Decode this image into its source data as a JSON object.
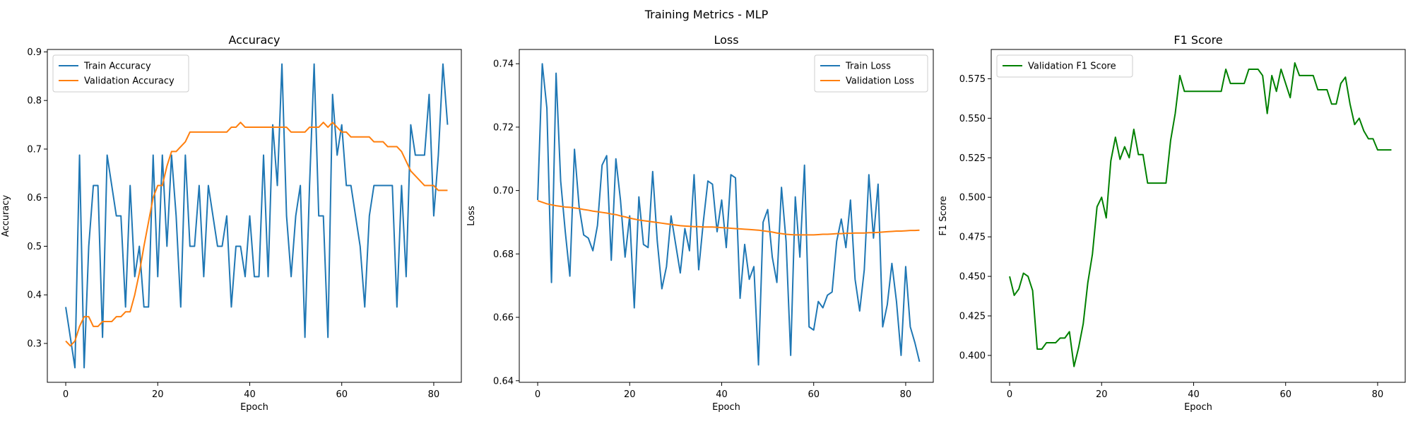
{
  "figure": {
    "suptitle": "Training Metrics - MLP"
  },
  "chart_data": [
    {
      "type": "line",
      "title": "Accuracy",
      "xlabel": "Epoch",
      "ylabel": "Accuracy",
      "xlim": [
        -4,
        86
      ],
      "ylim": [
        0.22,
        0.905
      ],
      "xticks": [
        0,
        20,
        40,
        60,
        80
      ],
      "yticks": [
        0.3,
        0.4,
        0.5,
        0.6,
        0.7,
        0.8,
        0.9
      ],
      "legend_position": "top-left",
      "grid": false,
      "series": [
        {
          "name": "Train Accuracy",
          "color": "#1f77b4",
          "values": [
            0.375,
            0.3125,
            0.25,
            0.6875,
            0.25,
            0.5,
            0.625,
            0.625,
            0.3125,
            0.6875,
            0.625,
            0.5625,
            0.5625,
            0.375,
            0.625,
            0.4375,
            0.5,
            0.375,
            0.375,
            0.6875,
            0.4375,
            0.6875,
            0.5,
            0.6875,
            0.5625,
            0.375,
            0.6875,
            0.5,
            0.5,
            0.625,
            0.4375,
            0.625,
            0.5625,
            0.5,
            0.5,
            0.5625,
            0.375,
            0.5,
            0.5,
            0.4375,
            0.5625,
            0.4375,
            0.4375,
            0.6875,
            0.4375,
            0.75,
            0.625,
            0.875,
            0.5625,
            0.4375,
            0.5625,
            0.625,
            0.3125,
            0.625,
            0.875,
            0.5625,
            0.5625,
            0.3125,
            0.8125,
            0.6875,
            0.75,
            0.625,
            0.625,
            0.5625,
            0.5,
            0.375,
            0.5625,
            0.625,
            0.625,
            0.625,
            0.625,
            0.625,
            0.375,
            0.625,
            0.4375,
            0.75,
            0.6875,
            0.6875,
            0.6875,
            0.8125,
            0.5625,
            0.6875,
            0.875,
            0.75
          ]
        },
        {
          "name": "Validation Accuracy",
          "color": "#ff7f0e",
          "values": [
            0.305,
            0.295,
            0.305,
            0.335,
            0.355,
            0.355,
            0.335,
            0.335,
            0.345,
            0.345,
            0.345,
            0.355,
            0.355,
            0.365,
            0.365,
            0.4,
            0.445,
            0.5,
            0.55,
            0.6,
            0.625,
            0.625,
            0.665,
            0.695,
            0.695,
            0.705,
            0.715,
            0.735,
            0.735,
            0.735,
            0.735,
            0.735,
            0.735,
            0.735,
            0.735,
            0.735,
            0.745,
            0.745,
            0.755,
            0.745,
            0.745,
            0.745,
            0.745,
            0.745,
            0.745,
            0.745,
            0.745,
            0.745,
            0.745,
            0.735,
            0.735,
            0.735,
            0.735,
            0.745,
            0.745,
            0.745,
            0.755,
            0.745,
            0.755,
            0.745,
            0.735,
            0.735,
            0.725,
            0.725,
            0.725,
            0.725,
            0.725,
            0.715,
            0.715,
            0.715,
            0.705,
            0.705,
            0.705,
            0.695,
            0.675,
            0.655,
            0.645,
            0.635,
            0.625,
            0.625,
            0.625,
            0.615,
            0.615,
            0.615
          ]
        }
      ]
    },
    {
      "type": "line",
      "title": "Loss",
      "xlabel": "Epoch",
      "ylabel": "Loss",
      "xlim": [
        -4,
        86
      ],
      "ylim": [
        0.6395,
        0.7445
      ],
      "xticks": [
        0,
        20,
        40,
        60,
        80
      ],
      "yticks": [
        0.64,
        0.66,
        0.68,
        0.7,
        0.72,
        0.74
      ],
      "legend_position": "top-right",
      "grid": false,
      "series": [
        {
          "name": "Train Loss",
          "color": "#1f77b4",
          "values": [
            0.697,
            0.74,
            0.726,
            0.671,
            0.737,
            0.703,
            0.687,
            0.673,
            0.713,
            0.695,
            0.686,
            0.685,
            0.681,
            0.689,
            0.708,
            0.711,
            0.678,
            0.71,
            0.697,
            0.679,
            0.692,
            0.663,
            0.698,
            0.683,
            0.682,
            0.706,
            0.684,
            0.669,
            0.676,
            0.692,
            0.683,
            0.674,
            0.688,
            0.681,
            0.705,
            0.675,
            0.69,
            0.703,
            0.702,
            0.687,
            0.697,
            0.682,
            0.705,
            0.704,
            0.666,
            0.683,
            0.672,
            0.676,
            0.645,
            0.69,
            0.694,
            0.679,
            0.671,
            0.701,
            0.684,
            0.648,
            0.698,
            0.679,
            0.708,
            0.657,
            0.656,
            0.665,
            0.663,
            0.667,
            0.668,
            0.684,
            0.691,
            0.682,
            0.697,
            0.672,
            0.662,
            0.675,
            0.705,
            0.685,
            0.702,
            0.657,
            0.664,
            0.677,
            0.665,
            0.648,
            0.676,
            0.657,
            0.652,
            0.646
          ]
        },
        {
          "name": "Validation Loss",
          "color": "#ff7f0e",
          "values": [
            0.6968,
            0.6963,
            0.6958,
            0.6955,
            0.6952,
            0.695,
            0.6948,
            0.6947,
            0.6945,
            0.6943,
            0.694,
            0.6938,
            0.6935,
            0.6933,
            0.6931,
            0.6929,
            0.6926,
            0.6924,
            0.692,
            0.6917,
            0.6913,
            0.691,
            0.6907,
            0.6905,
            0.6903,
            0.6901,
            0.6899,
            0.6897,
            0.6895,
            0.6893,
            0.6891,
            0.6889,
            0.6888,
            0.6887,
            0.6886,
            0.6886,
            0.6885,
            0.6885,
            0.6885,
            0.6884,
            0.6883,
            0.6882,
            0.6881,
            0.688,
            0.6879,
            0.6878,
            0.6877,
            0.6876,
            0.6875,
            0.6873,
            0.6871,
            0.6869,
            0.6866,
            0.6864,
            0.6862,
            0.6861,
            0.686,
            0.686,
            0.686,
            0.686,
            0.686,
            0.6861,
            0.6862,
            0.6862,
            0.6863,
            0.6864,
            0.6864,
            0.6865,
            0.6865,
            0.6866,
            0.6866,
            0.6866,
            0.6867,
            0.6867,
            0.6868,
            0.6869,
            0.687,
            0.6871,
            0.6872,
            0.6872,
            0.6873,
            0.6874,
            0.6874,
            0.6875
          ]
        }
      ]
    },
    {
      "type": "line",
      "title": "F1 Score",
      "xlabel": "Epoch",
      "ylabel": "F1 Score",
      "xlim": [
        -4,
        86
      ],
      "ylim": [
        0.383,
        0.5935
      ],
      "xticks": [
        0,
        20,
        40,
        60,
        80
      ],
      "yticks": [
        0.4,
        0.425,
        0.45,
        0.475,
        0.5,
        0.525,
        0.55,
        0.575
      ],
      "legend_position": "top-left",
      "grid": false,
      "series": [
        {
          "name": "Validation F1 Score",
          "color": "#008000",
          "values": [
            0.45,
            0.438,
            0.442,
            0.452,
            0.45,
            0.441,
            0.404,
            0.404,
            0.408,
            0.408,
            0.408,
            0.411,
            0.411,
            0.415,
            0.393,
            0.405,
            0.42,
            0.446,
            0.464,
            0.494,
            0.5,
            0.487,
            0.523,
            0.538,
            0.524,
            0.532,
            0.525,
            0.543,
            0.527,
            0.527,
            0.509,
            0.509,
            0.509,
            0.509,
            0.509,
            0.536,
            0.553,
            0.577,
            0.567,
            0.567,
            0.567,
            0.567,
            0.567,
            0.567,
            0.567,
            0.567,
            0.567,
            0.581,
            0.572,
            0.572,
            0.572,
            0.572,
            0.581,
            0.581,
            0.581,
            0.577,
            0.553,
            0.577,
            0.567,
            0.581,
            0.572,
            0.563,
            0.585,
            0.577,
            0.577,
            0.577,
            0.577,
            0.568,
            0.568,
            0.568,
            0.559,
            0.559,
            0.572,
            0.576,
            0.559,
            0.546,
            0.55,
            0.542,
            0.537,
            0.537,
            0.53,
            0.53,
            0.53,
            0.53
          ]
        }
      ]
    }
  ]
}
